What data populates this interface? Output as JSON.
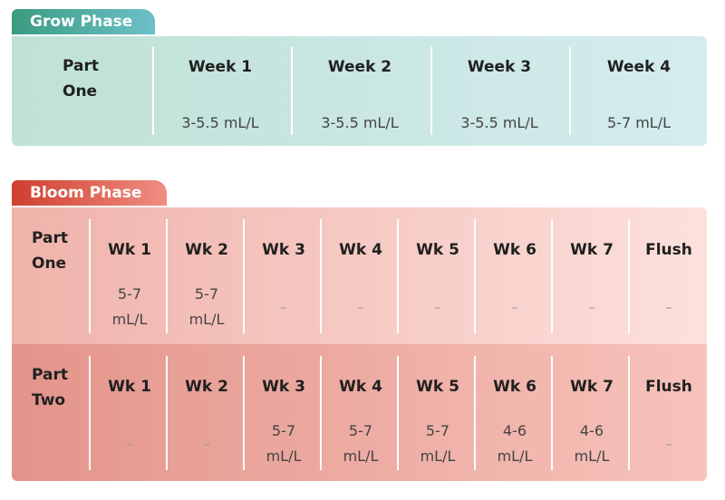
{
  "grow": {
    "tab_label": "Grow Phase",
    "row_label": [
      "Part",
      "One"
    ],
    "columns": [
      "Week 1",
      "Week 2",
      "Week 3",
      "Week 4"
    ],
    "values": [
      "3-5.5 mL/L",
      "3-5.5 mL/L",
      "3-5.5 mL/L",
      "5-7 mL/L"
    ]
  },
  "bloom": {
    "tab_label": "Bloom Phase",
    "columns": [
      "Wk 1",
      "Wk 2",
      "Wk 3",
      "Wk 4",
      "Wk 5",
      "Wk 6",
      "Wk 7",
      "Flush"
    ],
    "rows": [
      {
        "label": [
          "Part",
          "One"
        ],
        "values": [
          [
            "5-7",
            "mL/L"
          ],
          [
            "5-7",
            "mL/L"
          ],
          [
            "–"
          ],
          [
            "–"
          ],
          [
            "–"
          ],
          [
            "–"
          ],
          [
            "–"
          ],
          [
            "–"
          ]
        ]
      },
      {
        "label": [
          "Part",
          "Two"
        ],
        "values": [
          [
            "–"
          ],
          [
            "–"
          ],
          [
            "5-7",
            "mL/L"
          ],
          [
            "5-7",
            "mL/L"
          ],
          [
            "5-7",
            "mL/L"
          ],
          [
            "4-6",
            "mL/L"
          ],
          [
            "4-6",
            "mL/L"
          ],
          [
            "–"
          ]
        ]
      }
    ]
  },
  "colors": {
    "grow_tab": "#3a9b7f",
    "bloom_tab": "#cf3f2e",
    "grow_panel": "#c9e6e1",
    "bloom_part_one": "#f6c8c2",
    "bloom_part_two": "#eca59c"
  }
}
